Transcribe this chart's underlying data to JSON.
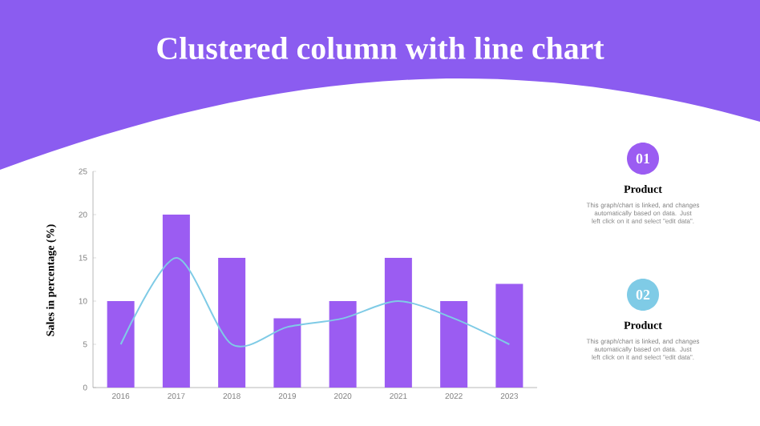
{
  "chart_data": {
    "type": "bar",
    "title": "Clustered column with line chart",
    "ylabel": "Sales in percentage (%)",
    "categories": [
      "2016",
      "2017",
      "2018",
      "2019",
      "2020",
      "2021",
      "2022",
      "2023"
    ],
    "series": [
      {
        "type": "bar",
        "color": "#9b5cf2",
        "values": [
          10,
          20,
          15,
          8,
          10,
          15,
          10,
          12
        ]
      },
      {
        "type": "line",
        "color": "#7fcbe6",
        "line_style": "solid",
        "values": [
          5,
          15,
          5,
          7,
          8,
          10,
          8,
          5
        ]
      }
    ],
    "ylim": [
      0,
      25
    ],
    "yticks": [
      0,
      5,
      10,
      15,
      20,
      25
    ],
    "annotations": [
      "01",
      "Product",
      "This graph/chart is linked, and changes automatically based on data. Just left click on it and select \"edit data\".",
      "02",
      "Product",
      "This graph/chart is linked, and changes automatically based on data. Just left click on it and select \"edit data\"."
    ]
  }
}
